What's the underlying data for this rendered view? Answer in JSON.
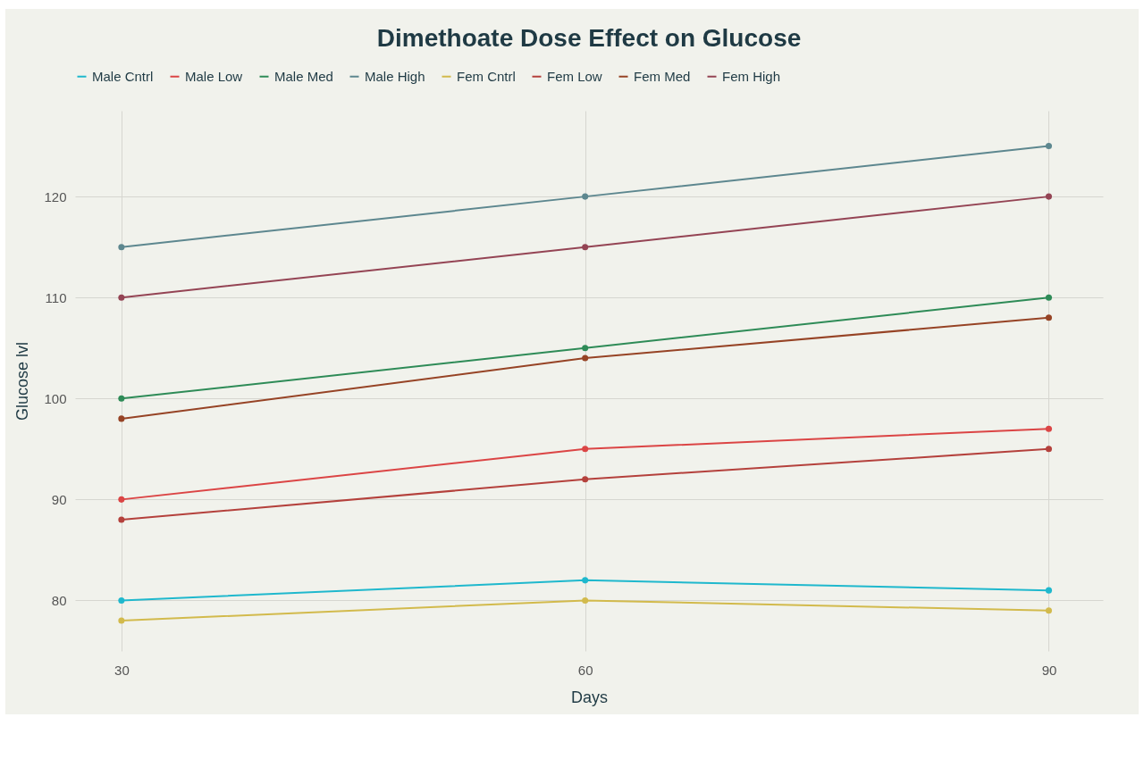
{
  "chart_data": {
    "type": "line",
    "title": "Dimethoate Dose Effect on Glucose",
    "xlabel": "Days",
    "ylabel": "Glucose lvl",
    "x": [
      30,
      60,
      90
    ],
    "series": [
      {
        "name": "Male Cntrl",
        "color": "#1fb8cd",
        "values": [
          80,
          82,
          81
        ]
      },
      {
        "name": "Male Low",
        "color": "#db4545",
        "values": [
          90,
          95,
          97
        ]
      },
      {
        "name": "Male Med",
        "color": "#2e8b57",
        "values": [
          100,
          105,
          110
        ]
      },
      {
        "name": "Male High",
        "color": "#5d878f",
        "values": [
          115,
          120,
          125
        ]
      },
      {
        "name": "Fem Cntrl",
        "color": "#d2ba4c",
        "values": [
          78,
          80,
          79
        ]
      },
      {
        "name": "Fem Low",
        "color": "#b4413c",
        "values": [
          88,
          92,
          95
        ]
      },
      {
        "name": "Fem Med",
        "color": "#964325",
        "values": [
          98,
          104,
          108
        ]
      },
      {
        "name": "Fem High",
        "color": "#944454",
        "values": [
          110,
          115,
          120
        ]
      }
    ],
    "xlim": [
      27,
      93.5
    ],
    "ylim": [
      75,
      128.5
    ],
    "xticks": [
      30,
      60,
      90
    ],
    "yticks": [
      80,
      90,
      100,
      110,
      120
    ],
    "grid": true,
    "legend": "top",
    "marker": "circle",
    "line_style": "solid"
  }
}
